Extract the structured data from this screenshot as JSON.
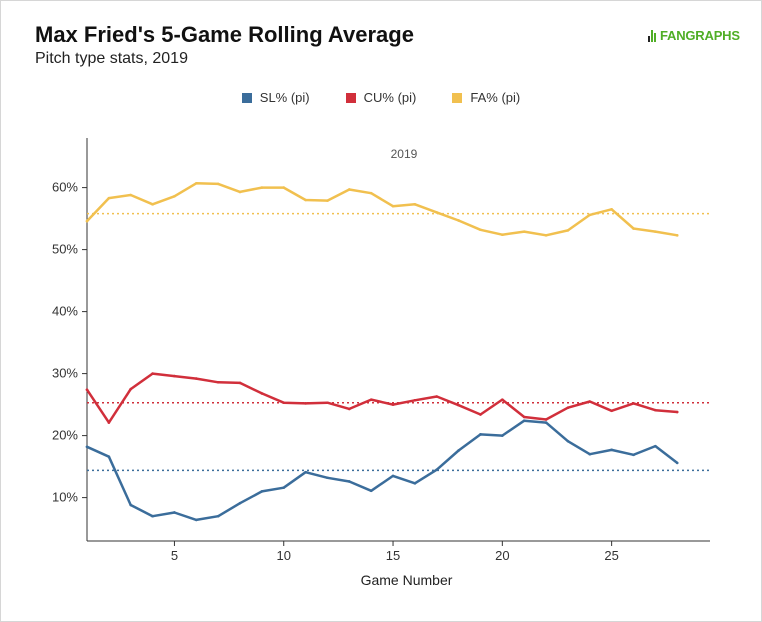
{
  "title": "Max Fried's 5-Game Rolling Average",
  "subtitle": "Pitch type stats, 2019",
  "logo_text": "FANGRAPHS",
  "chart_data": {
    "type": "line",
    "xlabel": "Game Number",
    "ylabel": "",
    "annotation": "2019",
    "xlim": [
      1,
      29.5
    ],
    "ylim": [
      3,
      68
    ],
    "xticks": [
      5,
      10,
      15,
      20,
      25
    ],
    "yticks": [
      10,
      20,
      30,
      40,
      50,
      60
    ],
    "ytick_labels": [
      "10%",
      "20%",
      "30%",
      "40%",
      "50%",
      "60%"
    ],
    "grid": false,
    "legend_position": "top",
    "x": [
      1,
      2,
      3,
      4,
      5,
      6,
      7,
      8,
      9,
      10,
      11,
      12,
      13,
      14,
      15,
      16,
      17,
      18,
      19,
      20,
      21,
      22,
      23,
      24,
      25,
      26,
      27,
      28
    ],
    "series": [
      {
        "name": "SL% (pi)",
        "color": "#3b6d9b",
        "average": 14.4,
        "values": [
          18.2,
          16.6,
          8.8,
          7.0,
          7.6,
          6.4,
          7.0,
          9.1,
          11.0,
          11.6,
          14.1,
          13.2,
          12.6,
          11.1,
          13.5,
          12.3,
          14.5,
          17.6,
          20.2,
          20.0,
          22.4,
          22.1,
          19.1,
          17.0,
          17.7,
          16.9,
          18.3,
          15.6
        ]
      },
      {
        "name": "CU% (pi)",
        "color": "#d12f3b",
        "average": 25.3,
        "values": [
          27.4,
          22.1,
          27.5,
          30.0,
          29.6,
          29.2,
          28.6,
          28.5,
          26.8,
          25.3,
          25.2,
          25.3,
          24.3,
          25.8,
          25.0,
          25.7,
          26.3,
          24.9,
          23.4,
          25.8,
          23.0,
          22.6,
          24.5,
          25.5,
          24.0,
          25.2,
          24.1,
          23.8
        ]
      },
      {
        "name": "FA% (pi)",
        "color": "#f1c04f",
        "average": 55.8,
        "values": [
          54.6,
          58.3,
          58.8,
          57.3,
          58.6,
          60.7,
          60.6,
          59.3,
          60.0,
          60.0,
          58.0,
          57.9,
          59.7,
          59.1,
          57.0,
          57.3,
          56.0,
          54.7,
          53.2,
          52.4,
          52.9,
          52.3,
          53.1,
          55.6,
          56.5,
          53.4,
          52.9,
          52.3
        ]
      }
    ]
  }
}
